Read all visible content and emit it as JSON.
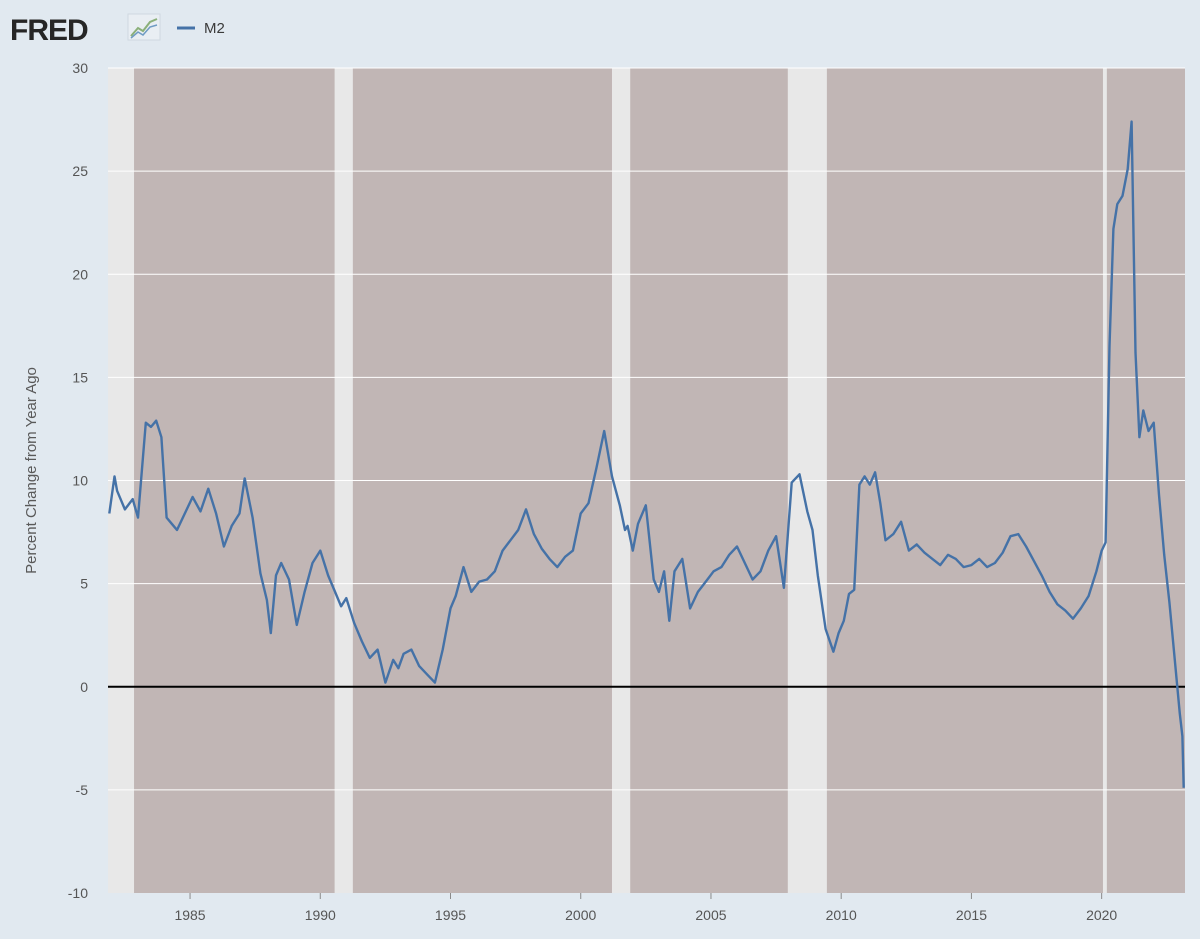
{
  "header": {
    "logo_text": "FRED",
    "logo_icon": "fred-chart-icon",
    "legend_label": "M2"
  },
  "colors": {
    "background": "#e1e9f0",
    "plot_background": "#e8e8e8",
    "band": "#c1b6b5",
    "series": "#4572a7",
    "gridline": "#ffffff",
    "zero_line": "#000000"
  },
  "chart_data": {
    "type": "line",
    "title": "",
    "xlabel": "",
    "ylabel": "Percent Change from Year Ago",
    "xlim": [
      1981.85,
      2023.2
    ],
    "ylim": [
      -10,
      30
    ],
    "xticks": [
      1985,
      1990,
      1995,
      2000,
      2005,
      2010,
      2015,
      2020
    ],
    "yticks": [
      -10,
      -5,
      0,
      5,
      10,
      15,
      20,
      25,
      30
    ],
    "grid": true,
    "legend": "top-left",
    "reference_line": 0,
    "shaded_bands": [
      [
        1982.85,
        1990.55
      ],
      [
        1991.25,
        2001.2
      ],
      [
        2001.9,
        2007.95
      ],
      [
        2009.45,
        2020.05
      ],
      [
        2020.2,
        2023.2
      ]
    ],
    "series": [
      {
        "name": "M2",
        "x": [
          1981.9,
          1982.1,
          1982.2,
          1982.5,
          1982.8,
          1983.0,
          1983.3,
          1983.5,
          1983.7,
          1983.9,
          1984.1,
          1984.3,
          1984.5,
          1984.8,
          1985.1,
          1985.4,
          1985.7,
          1986.0,
          1986.3,
          1986.6,
          1986.9,
          1987.1,
          1987.4,
          1987.7,
          1987.95,
          1988.1,
          1988.3,
          1988.5,
          1988.8,
          1989.1,
          1989.4,
          1989.7,
          1990.0,
          1990.3,
          1990.6,
          1990.8,
          1991.0,
          1991.3,
          1991.6,
          1991.9,
          1992.2,
          1992.5,
          1992.8,
          1993.0,
          1993.2,
          1993.5,
          1993.8,
          1994.1,
          1994.4,
          1994.7,
          1995.0,
          1995.2,
          1995.5,
          1995.8,
          1996.1,
          1996.4,
          1996.7,
          1997.0,
          1997.3,
          1997.6,
          1997.9,
          1998.2,
          1998.5,
          1998.8,
          1999.1,
          1999.4,
          1999.7,
          2000.0,
          2000.3,
          2000.6,
          2000.9,
          2001.2,
          2001.5,
          2001.7,
          2001.8,
          2002.0,
          2002.2,
          2002.5,
          2002.8,
          2003.0,
          2003.2,
          2003.4,
          2003.6,
          2003.9,
          2004.2,
          2004.5,
          2004.8,
          2005.1,
          2005.4,
          2005.7,
          2006.0,
          2006.3,
          2006.6,
          2006.9,
          2007.2,
          2007.5,
          2007.8,
          2008.1,
          2008.4,
          2008.7,
          2008.9,
          2009.1,
          2009.4,
          2009.7,
          2009.9,
          2010.1,
          2010.3,
          2010.5,
          2010.7,
          2010.9,
          2011.1,
          2011.3,
          2011.5,
          2011.7,
          2012.0,
          2012.3,
          2012.6,
          2012.9,
          2013.2,
          2013.5,
          2013.8,
          2014.1,
          2014.4,
          2014.7,
          2015.0,
          2015.3,
          2015.6,
          2015.9,
          2016.2,
          2016.5,
          2016.8,
          2017.1,
          2017.4,
          2017.7,
          2018.0,
          2018.3,
          2018.6,
          2018.9,
          2019.2,
          2019.5,
          2019.8,
          2020.0,
          2020.15,
          2020.3,
          2020.45,
          2020.6,
          2020.8,
          2021.0,
          2021.15,
          2021.3,
          2021.45,
          2021.6,
          2021.8,
          2022.0,
          2022.2,
          2022.4,
          2022.6,
          2022.8,
          2023.0,
          2023.1,
          2023.15
        ],
        "y": [
          8.4,
          10.2,
          9.5,
          8.6,
          9.1,
          8.2,
          12.8,
          12.6,
          12.9,
          12.1,
          8.2,
          7.9,
          7.6,
          8.4,
          9.2,
          8.5,
          9.6,
          8.4,
          6.8,
          7.8,
          8.4,
          10.1,
          8.2,
          5.5,
          4.2,
          2.6,
          5.4,
          6.0,
          5.2,
          3.0,
          4.6,
          6.0,
          6.6,
          5.4,
          4.5,
          3.9,
          4.3,
          3.1,
          2.2,
          1.4,
          1.8,
          0.2,
          1.3,
          0.9,
          1.6,
          1.8,
          1.0,
          0.6,
          0.2,
          1.8,
          3.8,
          4.4,
          5.8,
          4.6,
          5.1,
          5.2,
          5.6,
          6.6,
          7.1,
          7.6,
          8.6,
          7.4,
          6.7,
          6.2,
          5.8,
          6.3,
          6.6,
          8.4,
          8.9,
          10.6,
          12.4,
          10.2,
          8.8,
          7.6,
          7.8,
          6.6,
          7.9,
          8.8,
          5.2,
          4.6,
          5.6,
          3.2,
          5.6,
          6.2,
          3.8,
          4.6,
          5.1,
          5.6,
          5.8,
          6.4,
          6.8,
          6.0,
          5.2,
          5.6,
          6.6,
          7.3,
          4.8,
          9.9,
          10.3,
          8.5,
          7.6,
          5.4,
          2.8,
          1.7,
          2.6,
          3.2,
          4.5,
          4.7,
          9.8,
          10.2,
          9.8,
          10.4,
          8.9,
          7.1,
          7.4,
          8.0,
          6.6,
          6.9,
          6.5,
          6.2,
          5.9,
          6.4,
          6.2,
          5.8,
          5.9,
          6.2,
          5.8,
          6.0,
          6.5,
          7.3,
          7.4,
          6.8,
          6.1,
          5.4,
          4.6,
          4.0,
          3.7,
          3.3,
          3.8,
          4.4,
          5.6,
          6.6,
          7.0,
          16.5,
          22.2,
          23.4,
          23.8,
          25.1,
          27.4,
          16.2,
          12.1,
          13.4,
          12.4,
          12.8,
          9.3,
          6.4,
          4.1,
          1.4,
          -1.3,
          -2.4,
          -4.9
        ]
      }
    ]
  }
}
